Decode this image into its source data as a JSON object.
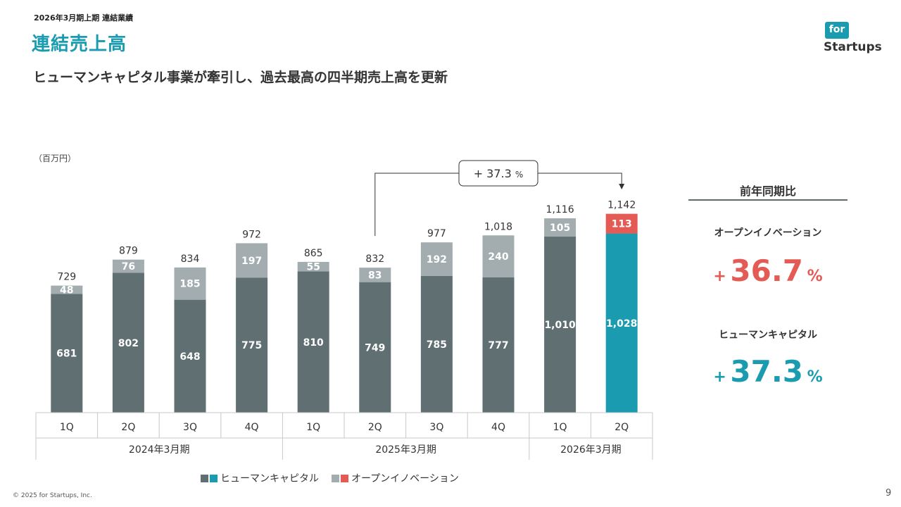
{
  "header": {
    "breadcrumb": "2026年3月期上期 連結業績",
    "title": "連結売上高",
    "headline": "ヒューマンキャピタル事業が牽引し、過去最高の四半期売上高を更新"
  },
  "logo": {
    "top": "for",
    "bottom": "Startups"
  },
  "colors": {
    "human_capital": "#5f6f72",
    "open_innovation": "#a3adb0",
    "human_capital_highlight": "#1a9bb0",
    "open_innovation_highlight": "#e45b55",
    "accent_red": "#e45b55",
    "accent_teal": "#1a9bb0"
  },
  "chart_data": {
    "type": "bar",
    "stacked": true,
    "unit_label": "（百万円）",
    "categories": [
      "1Q",
      "2Q",
      "3Q",
      "4Q",
      "1Q",
      "2Q",
      "3Q",
      "4Q",
      "1Q",
      "2Q"
    ],
    "groups": [
      {
        "label": "2024年3月期",
        "span": 4
      },
      {
        "label": "2025年3月期",
        "span": 4
      },
      {
        "label": "2026年3月期",
        "span": 2
      }
    ],
    "series": [
      {
        "name": "ヒューマンキャピタル",
        "values": [
          681,
          802,
          648,
          775,
          810,
          749,
          785,
          777,
          1010,
          1028
        ]
      },
      {
        "name": "オープンイノベーション",
        "values": [
          48,
          76,
          185,
          197,
          55,
          83,
          192,
          240,
          105,
          113
        ]
      }
    ],
    "totals": [
      "729",
      "879",
      "834",
      "972",
      "865",
      "832",
      "977",
      "1,018",
      "1,116",
      "1,142"
    ],
    "hc_labels": [
      "681",
      "802",
      "648",
      "775",
      "810",
      "749",
      "785",
      "777",
      "1,010",
      "1,028"
    ],
    "oi_labels": [
      "48",
      "76",
      "185",
      "197",
      "55",
      "83",
      "192",
      "240",
      "105",
      "113"
    ],
    "highlight_index": 9,
    "ylim": [
      0,
      1200
    ],
    "annotation": {
      "text": "+ 37.3",
      "unit": "%",
      "from_index": 5,
      "to_index": 9
    },
    "legend": [
      "ヒューマンキャピタル",
      "オープンイノベーション"
    ]
  },
  "yoy": {
    "header": "前年同期比",
    "metrics": [
      {
        "label": "オープンイノベーション",
        "sign": "+",
        "value": "36.7",
        "unit": "%",
        "color": "#e45b55"
      },
      {
        "label": "ヒューマンキャピタル",
        "sign": "+",
        "value": "37.3",
        "unit": "%",
        "color": "#1a9bb0"
      }
    ]
  },
  "footer": {
    "copyright": "© 2025 for Startups, Inc.",
    "page": "9"
  }
}
